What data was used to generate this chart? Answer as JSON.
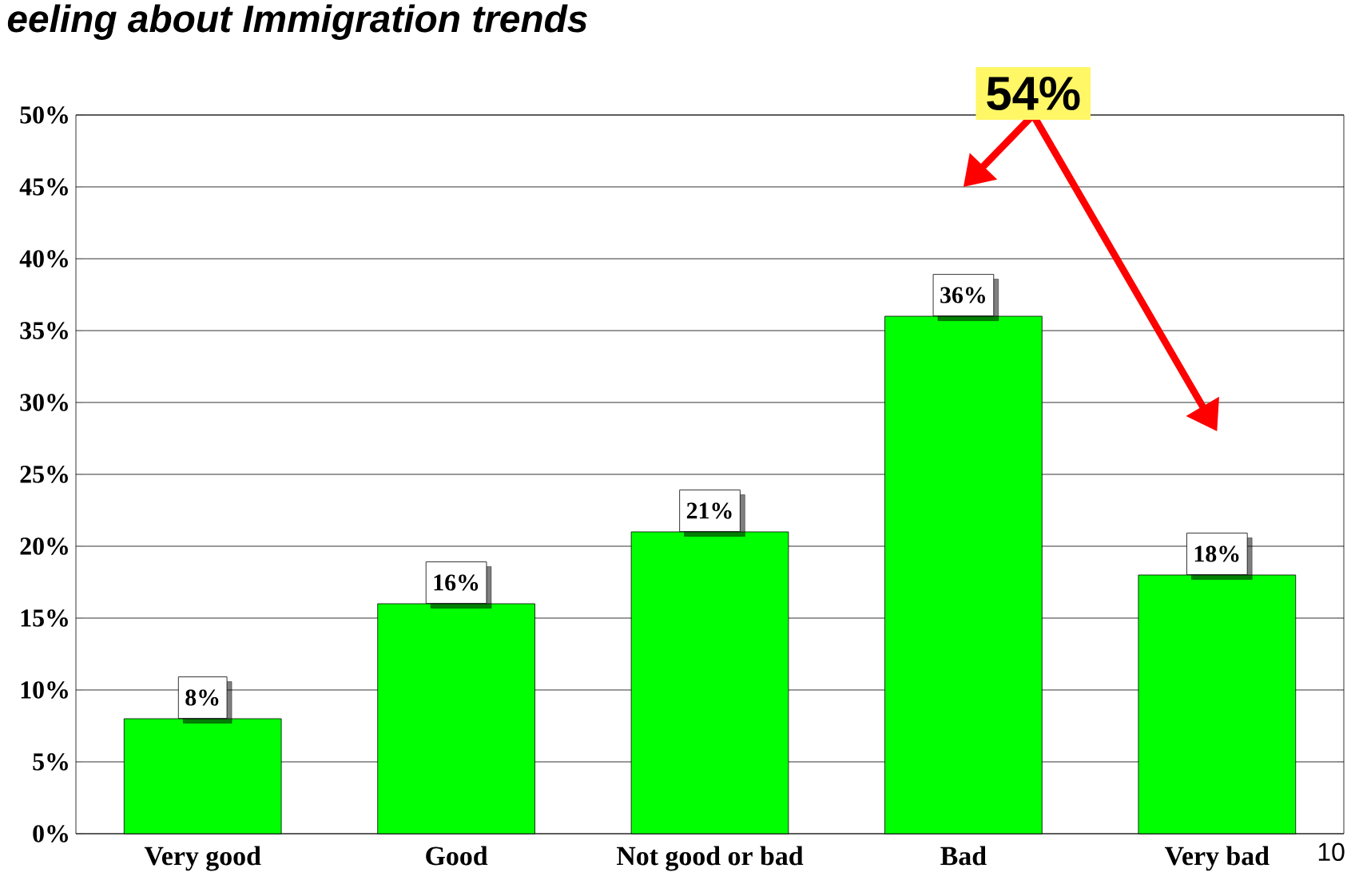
{
  "chart_data": {
    "type": "bar",
    "title": "eeling about Immigration trends",
    "categories": [
      "Very good",
      "Good",
      "Not good or bad",
      "Bad",
      "Very bad"
    ],
    "values": [
      8,
      16,
      21,
      36,
      18
    ],
    "value_labels": [
      "8%",
      "16%",
      "21%",
      "36%",
      "18%"
    ],
    "color": "#00ff00",
    "ylim": [
      0,
      50
    ],
    "yticks": [
      {
        "value": 0,
        "label": "0%"
      },
      {
        "value": 5,
        "label": "5%"
      },
      {
        "value": 10,
        "label": "10%"
      },
      {
        "value": 15,
        "label": "15%"
      },
      {
        "value": 20,
        "label": "20%"
      },
      {
        "value": 25,
        "label": "25%"
      },
      {
        "value": 30,
        "label": "30%"
      },
      {
        "value": 35,
        "label": "35%"
      },
      {
        "value": 40,
        "label": "40%"
      },
      {
        "value": 45,
        "label": "45%"
      },
      {
        "value": 50,
        "label": "50%"
      }
    ],
    "grid": "y",
    "annotations": [
      "54%",
      "10"
    ]
  }
}
